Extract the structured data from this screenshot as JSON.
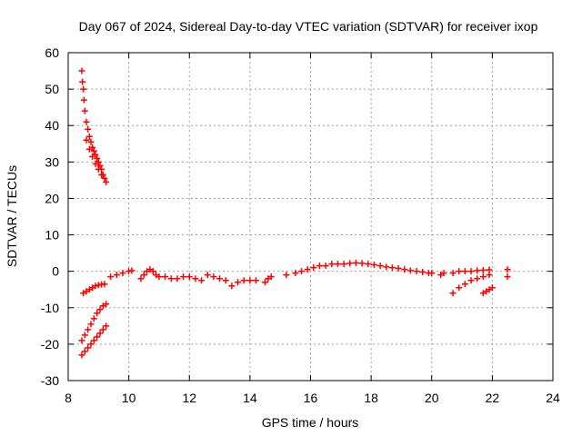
{
  "chart_data": {
    "type": "scatter",
    "title": "Day 067 of 2024, Sidereal Day-to-day VTEC variation (SDTVAR) for receiver ixop",
    "xlabel": "GPS time / hours",
    "ylabel": "SDTVAR / TECUs",
    "xlim": [
      8,
      24
    ],
    "ylim": [
      -30,
      60
    ],
    "xticks": [
      "8",
      "10",
      "12",
      "14",
      "16",
      "18",
      "20",
      "22",
      "24"
    ],
    "yticks": [
      "-30",
      "-20",
      "-10",
      "0",
      "10",
      "20",
      "30",
      "40",
      "50",
      "60"
    ],
    "grid": true,
    "marker": "+",
    "series": [
      {
        "name": "SDTVAR",
        "color": "#ff0000",
        "points": [
          [
            8.45,
            55
          ],
          [
            8.47,
            52
          ],
          [
            8.5,
            50
          ],
          [
            8.52,
            47
          ],
          [
            8.55,
            44
          ],
          [
            8.6,
            41
          ],
          [
            8.65,
            39
          ],
          [
            8.7,
            37
          ],
          [
            8.75,
            35.5
          ],
          [
            8.8,
            34
          ],
          [
            8.85,
            33
          ],
          [
            8.9,
            32
          ],
          [
            8.95,
            31
          ],
          [
            9.0,
            30
          ],
          [
            9.05,
            29
          ],
          [
            9.1,
            28
          ],
          [
            9.15,
            26.5
          ],
          [
            9.2,
            25.5
          ],
          [
            9.25,
            24.5
          ],
          [
            8.6,
            36
          ],
          [
            8.7,
            33.5
          ],
          [
            8.8,
            31.5
          ],
          [
            8.9,
            29.5
          ],
          [
            9.0,
            28
          ],
          [
            9.1,
            26.5
          ],
          [
            8.5,
            -6
          ],
          [
            8.6,
            -5.5
          ],
          [
            8.7,
            -5
          ],
          [
            8.8,
            -4.5
          ],
          [
            8.9,
            -4
          ],
          [
            9.0,
            -3.8
          ],
          [
            9.1,
            -3.6
          ],
          [
            9.2,
            -3.5
          ],
          [
            8.45,
            -19
          ],
          [
            8.55,
            -17.5
          ],
          [
            8.65,
            -16
          ],
          [
            8.75,
            -14.5
          ],
          [
            8.85,
            -13
          ],
          [
            8.95,
            -11.5
          ],
          [
            9.05,
            -10.5
          ],
          [
            9.15,
            -9.5
          ],
          [
            9.25,
            -9
          ],
          [
            8.45,
            -23
          ],
          [
            8.55,
            -22
          ],
          [
            8.65,
            -21
          ],
          [
            8.75,
            -20
          ],
          [
            8.85,
            -19
          ],
          [
            8.95,
            -18
          ],
          [
            9.05,
            -17
          ],
          [
            9.15,
            -16
          ],
          [
            9.25,
            -15
          ],
          [
            9.4,
            -1.5
          ],
          [
            9.6,
            -1
          ],
          [
            9.8,
            -0.5
          ],
          [
            10.0,
            0
          ],
          [
            10.1,
            0.2
          ],
          [
            10.4,
            -2
          ],
          [
            10.5,
            -1
          ],
          [
            10.6,
            0
          ],
          [
            10.7,
            0.5
          ],
          [
            10.8,
            0
          ],
          [
            10.9,
            -1
          ],
          [
            11.0,
            -1.5
          ],
          [
            11.2,
            -1.5
          ],
          [
            11.4,
            -2
          ],
          [
            11.6,
            -2
          ],
          [
            11.8,
            -1.5
          ],
          [
            12.0,
            -1.5
          ],
          [
            12.2,
            -2
          ],
          [
            12.4,
            -2.5
          ],
          [
            12.6,
            -1
          ],
          [
            12.8,
            -1.5
          ],
          [
            13.0,
            -2
          ],
          [
            13.2,
            -2.5
          ],
          [
            13.4,
            -4
          ],
          [
            13.6,
            -3
          ],
          [
            13.8,
            -2.5
          ],
          [
            14.0,
            -2.5
          ],
          [
            14.2,
            -2.5
          ],
          [
            14.5,
            -3
          ],
          [
            14.6,
            -2
          ],
          [
            14.7,
            -1.5
          ],
          [
            15.2,
            -1
          ],
          [
            15.5,
            -0.5
          ],
          [
            15.7,
            0
          ],
          [
            15.9,
            0.5
          ],
          [
            16.1,
            1
          ],
          [
            16.3,
            1.5
          ],
          [
            16.5,
            1.5
          ],
          [
            16.7,
            2
          ],
          [
            16.9,
            2
          ],
          [
            17.1,
            2
          ],
          [
            17.3,
            2.2
          ],
          [
            17.5,
            2.3
          ],
          [
            17.7,
            2.2
          ],
          [
            17.9,
            2
          ],
          [
            18.1,
            1.8
          ],
          [
            18.3,
            1.5
          ],
          [
            18.5,
            1.2
          ],
          [
            18.7,
            1
          ],
          [
            18.9,
            0.8
          ],
          [
            19.1,
            0.5
          ],
          [
            19.3,
            0.2
          ],
          [
            19.5,
            0
          ],
          [
            19.7,
            -0.2
          ],
          [
            19.9,
            -0.5
          ],
          [
            20.0,
            -0.5
          ],
          [
            20.3,
            -1
          ],
          [
            20.4,
            -0.5
          ],
          [
            20.7,
            -0.5
          ],
          [
            20.9,
            0
          ],
          [
            21.1,
            0
          ],
          [
            21.3,
            0
          ],
          [
            21.5,
            0.2
          ],
          [
            21.7,
            0.3
          ],
          [
            21.9,
            0.4
          ],
          [
            20.7,
            -6
          ],
          [
            20.9,
            -4.5
          ],
          [
            21.1,
            -3.5
          ],
          [
            21.3,
            -2.5
          ],
          [
            21.5,
            -2
          ],
          [
            21.7,
            -1.5
          ],
          [
            21.9,
            -1
          ],
          [
            21.7,
            -6
          ],
          [
            21.8,
            -5.5
          ],
          [
            21.9,
            -5
          ],
          [
            22.0,
            -4.5
          ],
          [
            22.5,
            0.5
          ],
          [
            22.5,
            -1.5
          ]
        ]
      }
    ]
  }
}
